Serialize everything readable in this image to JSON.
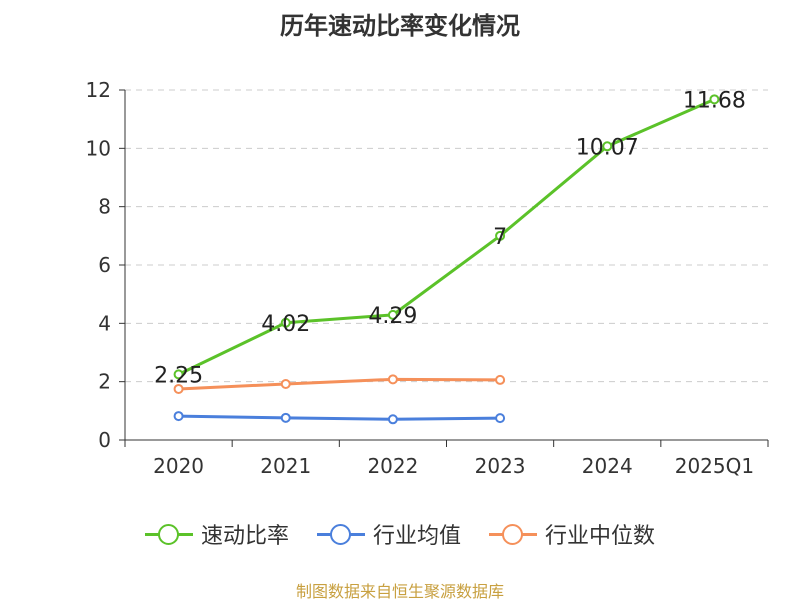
{
  "chart_data": {
    "type": "line",
    "title": "历年速动比率变化情况",
    "categories": [
      "2020",
      "2021",
      "2022",
      "2023",
      "2024",
      "2025Q1"
    ],
    "y_ticks": [
      0,
      2,
      4,
      6,
      8,
      10,
      12
    ],
    "ylim": [
      0,
      12
    ],
    "grid": true,
    "series": [
      {
        "name": "速动比率",
        "color": "#5bc229",
        "values": [
          2.25,
          4.02,
          4.29,
          7,
          10.07,
          11.68
        ],
        "labels": [
          "2.25",
          "4.02",
          "4.29",
          "7",
          "10.07",
          "11.68"
        ]
      },
      {
        "name": "行业均值",
        "color": "#4a7fdc",
        "values": [
          0.82,
          0.76,
          0.71,
          0.75,
          null,
          null
        ]
      },
      {
        "name": "行业中位数",
        "color": "#f5905a",
        "values": [
          1.75,
          1.92,
          2.08,
          2.06,
          null,
          null
        ]
      }
    ],
    "legend_position": "bottom-center"
  },
  "source": "制图数据来自恒生聚源数据库"
}
